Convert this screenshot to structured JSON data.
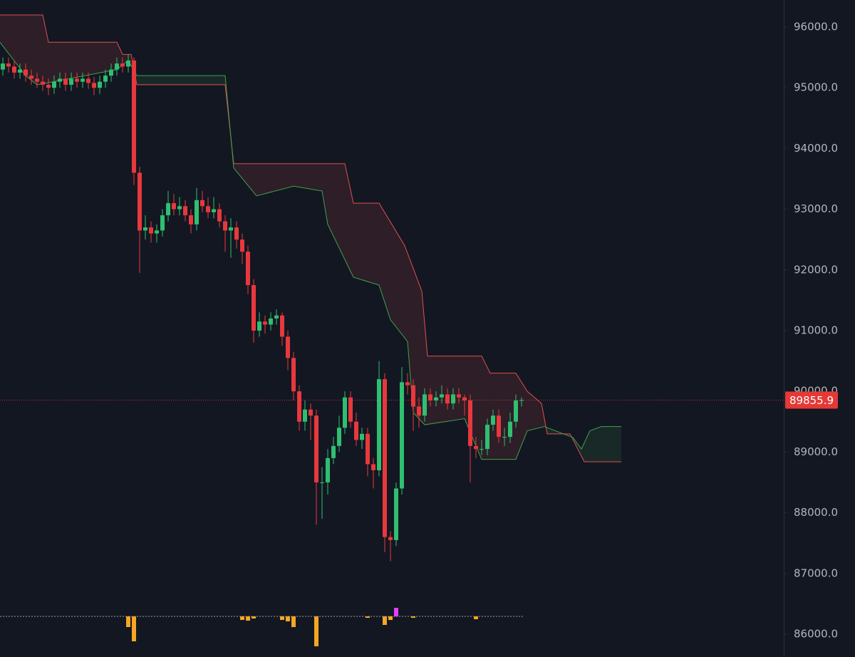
{
  "chart_data": {
    "type": "candlestick",
    "ylim": [
      85624,
      96446
    ],
    "xlim": [
      -0.5,
      137
    ],
    "yticks": [
      {
        "value": 86000,
        "label": "86000.0"
      },
      {
        "value": 87000,
        "label": "87000.0"
      },
      {
        "value": 88000,
        "label": "88000.0"
      },
      {
        "value": 89000,
        "label": "89000.0"
      },
      {
        "value": 90000,
        "label": "90000.0"
      },
      {
        "value": 91000,
        "label": "91000.0"
      },
      {
        "value": 92000,
        "label": "92000.0"
      },
      {
        "value": 93000,
        "label": "93000.0"
      },
      {
        "value": 94000,
        "label": "94000.0"
      },
      {
        "value": 95000,
        "label": "95000.0"
      },
      {
        "value": 96000,
        "label": "96000.0"
      }
    ],
    "up_color": "#2fbf71",
    "down_color": "#e8383d",
    "last_price": 89855.9,
    "open": [
      95300,
      95400,
      95350,
      95250,
      95300,
      95200,
      95150,
      95100,
      95050,
      95000,
      95100,
      95150,
      95050,
      95150,
      95100,
      95150,
      95080,
      95000,
      95100,
      95200,
      95300,
      95400,
      95350,
      95450,
      93600,
      92650,
      92700,
      92600,
      92650,
      92900,
      93100,
      93000,
      93050,
      92900,
      92750,
      93150,
      93050,
      92950,
      93000,
      92800,
      92650,
      92700,
      92500,
      92300,
      91750,
      91000,
      91150,
      91100,
      91200,
      91250,
      90900,
      90550,
      90000,
      89500,
      89700,
      89600,
      88500,
      88500,
      88900,
      89100,
      89400,
      89900,
      89500,
      89200,
      89300,
      88800,
      88700,
      90200,
      87600,
      87550,
      88400,
      90150,
      90100,
      89750,
      89600,
      89950,
      89850,
      89900,
      89950,
      89800,
      89950,
      89900,
      89850,
      89100,
      89050,
      89050,
      89450,
      89600,
      89250,
      89250,
      89500,
      89850
    ],
    "high": [
      95500,
      95500,
      95450,
      95400,
      95400,
      95300,
      95250,
      95200,
      95150,
      95200,
      95250,
      95250,
      95250,
      95250,
      95250,
      95250,
      95180,
      95200,
      95300,
      95400,
      95500,
      95500,
      95550,
      95500,
      93700,
      92900,
      92800,
      92750,
      93000,
      93300,
      93250,
      93200,
      93150,
      93000,
      93350,
      93300,
      93200,
      93200,
      93100,
      92900,
      92850,
      92800,
      92600,
      92400,
      91850,
      91300,
      91250,
      91300,
      91350,
      91300,
      91000,
      90650,
      90100,
      89850,
      89800,
      89700,
      88750,
      89050,
      89250,
      89600,
      90000,
      90000,
      89650,
      89400,
      89400,
      88900,
      90500,
      90300,
      87700,
      88500,
      90400,
      90300,
      90200,
      89900,
      90050,
      90050,
      90000,
      90100,
      90050,
      90050,
      90050,
      89950,
      89950,
      89250,
      89200,
      89550,
      89700,
      89700,
      89400,
      89650,
      89950,
      89900
    ],
    "low": [
      95200,
      95250,
      95150,
      95150,
      95100,
      95050,
      95000,
      94950,
      94880,
      94900,
      95000,
      94950,
      94950,
      95000,
      95000,
      94980,
      94880,
      94900,
      95000,
      95100,
      95200,
      95250,
      95250,
      93400,
      91950,
      92500,
      92450,
      92450,
      92550,
      92800,
      92900,
      92900,
      92800,
      92600,
      92650,
      92950,
      92850,
      92850,
      92700,
      92300,
      92200,
      92350,
      92100,
      91600,
      90800,
      90900,
      90950,
      91000,
      91100,
      90750,
      90350,
      89850,
      89350,
      89350,
      89200,
      87800,
      87900,
      88300,
      88800,
      89000,
      89300,
      89400,
      89100,
      89050,
      88600,
      88400,
      88600,
      87350,
      87200,
      87450,
      88300,
      89950,
      89350,
      89400,
      89500,
      89750,
      89750,
      89800,
      89700,
      89700,
      89800,
      89600,
      88500,
      88900,
      88950,
      88950,
      89350,
      89150,
      89100,
      89150,
      89400,
      89750
    ],
    "close": [
      95400,
      95350,
      95250,
      95300,
      95200,
      95150,
      95100,
      95050,
      95000,
      95100,
      95150,
      95050,
      95150,
      95100,
      95150,
      95080,
      95000,
      95100,
      95200,
      95300,
      95400,
      95350,
      95450,
      93600,
      92650,
      92700,
      92600,
      92650,
      92900,
      93100,
      93000,
      93050,
      92900,
      92750,
      93150,
      93050,
      92950,
      93000,
      92800,
      92650,
      92700,
      92500,
      92300,
      91750,
      91000,
      91150,
      91100,
      91200,
      91250,
      90900,
      90550,
      90000,
      89500,
      89700,
      89600,
      88500,
      88500,
      88900,
      89100,
      89400,
      89900,
      89500,
      89200,
      89300,
      88800,
      88700,
      90200,
      87600,
      87550,
      88400,
      90150,
      90100,
      89750,
      89600,
      89950,
      89850,
      89900,
      89950,
      89800,
      89950,
      89900,
      89850,
      89100,
      89050,
      89050,
      89450,
      89600,
      89250,
      89250,
      89500,
      89850,
      89855.9
    ],
    "cloud_b": {
      "color": "#e05050",
      "x": [
        -0.5,
        7,
        8,
        20,
        21,
        22.5,
        23.5,
        39,
        40.5,
        60,
        61.5,
        66,
        70.5,
        73.5,
        74.5,
        84,
        85.5,
        90,
        92,
        94.5,
        95.5,
        99.5,
        102,
        108.5
      ],
      "values": [
        96200,
        96200,
        95750,
        95750,
        95550,
        95550,
        95050,
        95050,
        93750,
        93750,
        93100,
        93100,
        92400,
        91650,
        90580,
        90580,
        90300,
        90300,
        90000,
        89800,
        89300,
        89300,
        88840,
        88840
      ]
    },
    "cloud_a": {
      "color": "#3fa34d",
      "x": [
        -0.5,
        4,
        6,
        20,
        22,
        23.5,
        35,
        39,
        40.5,
        44.5,
        51,
        56,
        57,
        61.5,
        66,
        68,
        71,
        72,
        74,
        81,
        84,
        90,
        92,
        95,
        100,
        101.5,
        103,
        105,
        108.5
      ],
      "values": [
        95750,
        95200,
        95050,
        95300,
        95450,
        95200,
        95200,
        95200,
        93680,
        93220,
        93380,
        93300,
        92750,
        91880,
        91750,
        91180,
        90820,
        89650,
        89450,
        89550,
        88880,
        88880,
        89350,
        89420,
        89240,
        89050,
        89350,
        89420,
        89420
      ]
    },
    "hist_values": [
      0,
      0,
      0,
      0,
      0,
      0,
      0,
      0,
      0,
      0,
      0,
      0,
      0,
      0,
      0,
      0,
      0,
      0,
      0,
      0,
      0,
      0,
      -15,
      -35,
      0,
      0,
      0,
      0,
      0,
      0,
      0,
      0,
      0,
      0,
      0,
      0,
      0,
      0,
      0,
      0,
      0,
      0,
      -5,
      -6,
      -3,
      0,
      0,
      0,
      0,
      -5,
      -7,
      -15,
      0,
      0,
      0,
      -42,
      0,
      0,
      0,
      0,
      0,
      0,
      0,
      0,
      -2,
      0,
      0,
      -12,
      -5,
      12,
      0,
      0,
      -2,
      0,
      0,
      0,
      0,
      0,
      0,
      0,
      0,
      0,
      0,
      -4,
      0,
      0,
      0,
      0,
      0,
      0,
      0,
      0
    ],
    "hist_neg_color": "#f5a623",
    "hist_pos_color": "#e040fb"
  }
}
